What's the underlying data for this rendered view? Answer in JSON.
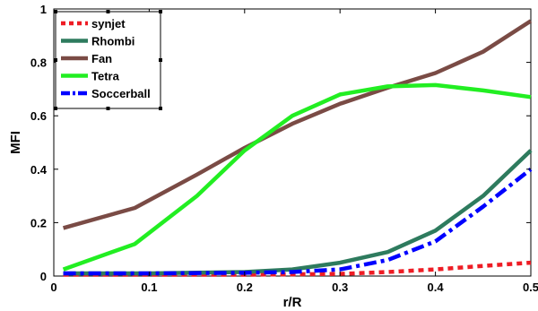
{
  "chart_data": {
    "type": "line",
    "xlabel": "r/R",
    "ylabel": "MFI",
    "xlim": [
      0,
      0.5
    ],
    "ylim": [
      0,
      1
    ],
    "xticks": [
      0,
      0.1,
      0.2,
      0.3,
      0.4,
      0.5
    ],
    "xtick_labels": [
      "0",
      "0.1",
      "0.2",
      "0.3",
      "0.4",
      "0.5"
    ],
    "yticks": [
      0,
      0.2,
      0.4,
      0.6,
      0.8,
      1
    ],
    "ytick_labels": [
      "0",
      "0.2",
      "0.4",
      "0.6",
      "0.8",
      "1"
    ],
    "grid": false,
    "legend_position": "top-left",
    "series": [
      {
        "name": "synjet",
        "color": "#ee1c24",
        "dash": "dotted",
        "x": [
          0.01,
          0.1,
          0.2,
          0.3,
          0.35,
          0.4,
          0.45,
          0.5
        ],
        "y": [
          0.005,
          0.005,
          0.005,
          0.008,
          0.015,
          0.025,
          0.038,
          0.05
        ]
      },
      {
        "name": "Rhombi",
        "color": "#2e7b5e",
        "dash": "solid",
        "x": [
          0.01,
          0.1,
          0.2,
          0.25,
          0.3,
          0.35,
          0.4,
          0.45,
          0.5
        ],
        "y": [
          0.01,
          0.01,
          0.015,
          0.025,
          0.05,
          0.09,
          0.17,
          0.3,
          0.47
        ]
      },
      {
        "name": "Fan",
        "color": "#7a4b45",
        "dash": "solid",
        "x": [
          0.01,
          0.085,
          0.15,
          0.2,
          0.25,
          0.3,
          0.35,
          0.4,
          0.45,
          0.5
        ],
        "y": [
          0.18,
          0.255,
          0.38,
          0.48,
          0.57,
          0.645,
          0.705,
          0.76,
          0.84,
          0.955
        ]
      },
      {
        "name": "Tetra",
        "color": "#22ee22",
        "dash": "solid",
        "x": [
          0.01,
          0.085,
          0.15,
          0.2,
          0.25,
          0.3,
          0.35,
          0.4,
          0.45,
          0.5
        ],
        "y": [
          0.025,
          0.12,
          0.3,
          0.47,
          0.6,
          0.68,
          0.71,
          0.715,
          0.695,
          0.67
        ]
      },
      {
        "name": "Soccerball",
        "color": "#0000ff",
        "dash": "dashdot",
        "x": [
          0.01,
          0.1,
          0.2,
          0.25,
          0.3,
          0.35,
          0.4,
          0.45,
          0.5
        ],
        "y": [
          0.01,
          0.01,
          0.012,
          0.015,
          0.025,
          0.06,
          0.13,
          0.26,
          0.4
        ]
      }
    ]
  }
}
